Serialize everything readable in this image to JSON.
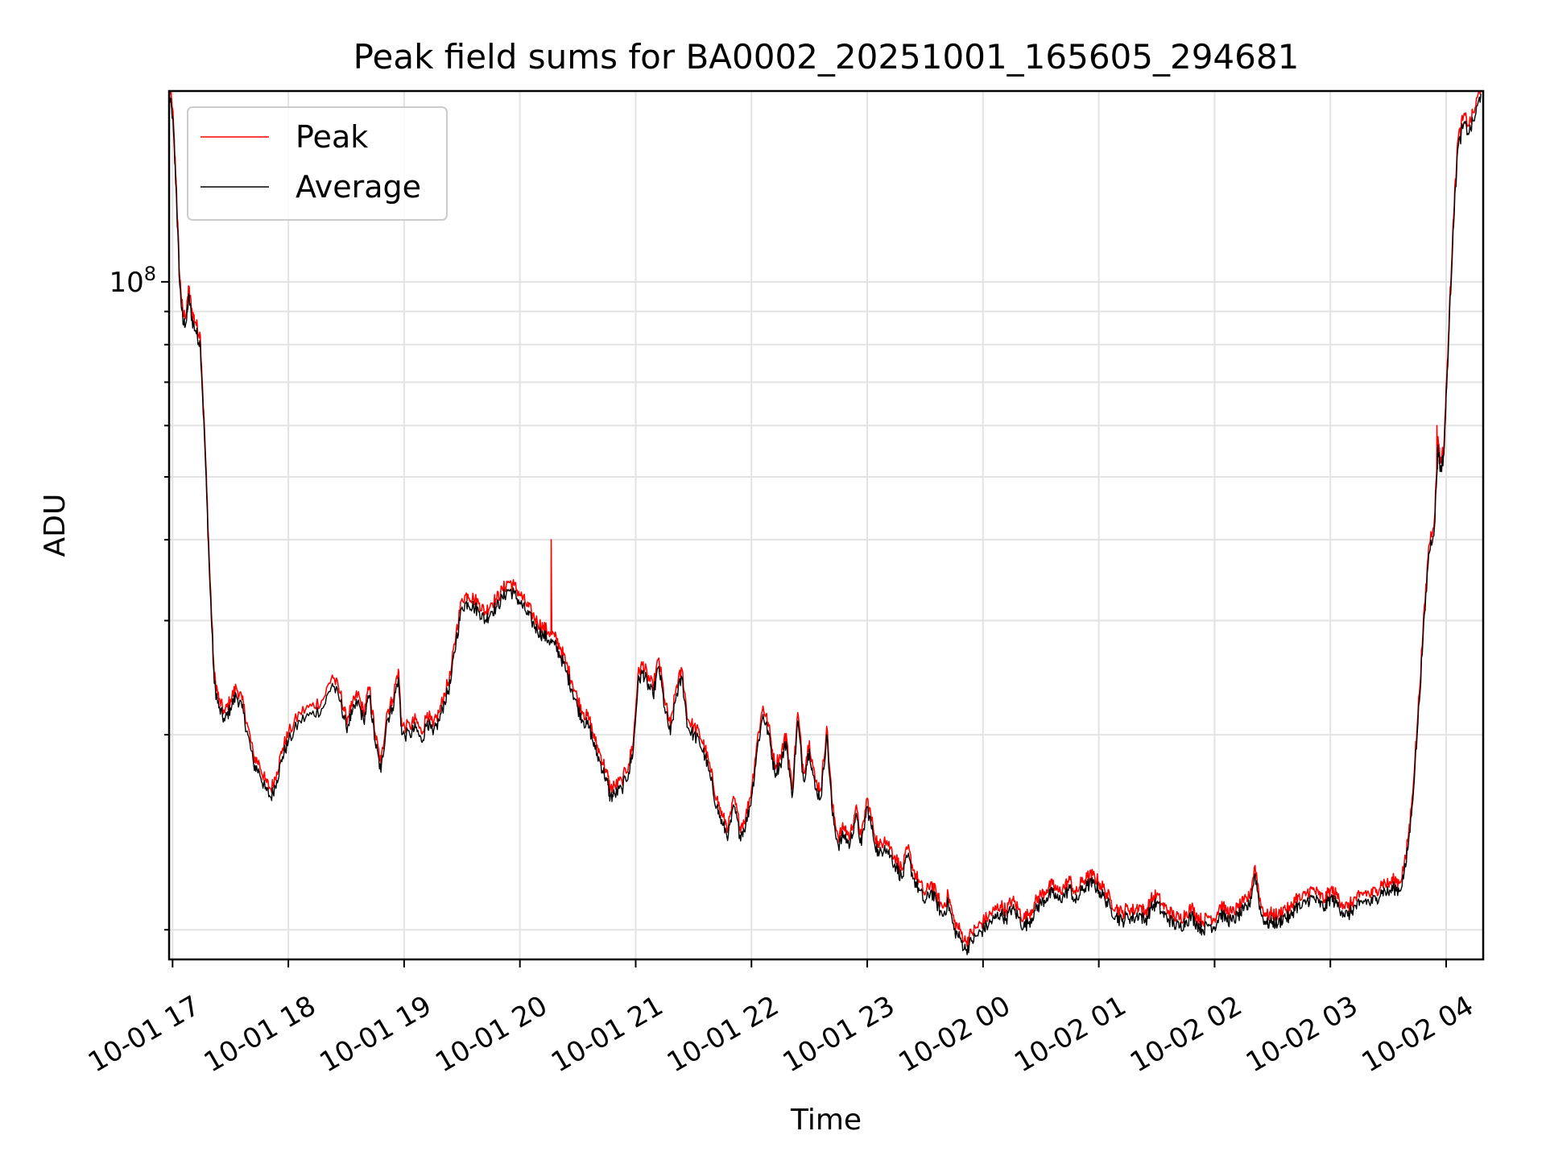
{
  "chart_data": {
    "type": "line",
    "title": "Peak field sums for BA0002_20251001_165605_294681",
    "xlabel": "Time",
    "ylabel": "ADU",
    "yscale": "log",
    "ylim": [
      9000000,
      197000000
    ],
    "xlim_hours": [
      16.97,
      28.32
    ],
    "x_ticks": [
      {
        "hour": 17,
        "label": "10-01 17"
      },
      {
        "hour": 18,
        "label": "10-01 18"
      },
      {
        "hour": 19,
        "label": "10-01 19"
      },
      {
        "hour": 20,
        "label": "10-01 20"
      },
      {
        "hour": 21,
        "label": "10-01 21"
      },
      {
        "hour": 22,
        "label": "10-01 22"
      },
      {
        "hour": 23,
        "label": "10-01 23"
      },
      {
        "hour": 24,
        "label": "10-02 00"
      },
      {
        "hour": 25,
        "label": "10-02 01"
      },
      {
        "hour": 26,
        "label": "10-02 02"
      },
      {
        "hour": 27,
        "label": "10-02 03"
      },
      {
        "hour": 28,
        "label": "10-02 04"
      }
    ],
    "y_major_ticks": [
      {
        "value": 100000000,
        "base": "10",
        "exp": "8"
      }
    ],
    "y_minor_ticks": [
      10000000,
      20000000,
      30000000,
      40000000,
      50000000,
      60000000,
      70000000,
      80000000,
      90000000
    ],
    "grid": true,
    "legend_position": "upper-left",
    "series": [
      {
        "name": "Peak",
        "color": "#ff0000",
        "offset_factor": 1.03
      },
      {
        "name": "Average",
        "color": "#000000",
        "offset_factor": 1.0
      }
    ],
    "average_points": [
      [
        16.97,
        195000000
      ],
      [
        17.0,
        180000000
      ],
      [
        17.03,
        140000000
      ],
      [
        17.06,
        100000000
      ],
      [
        17.09,
        86000000
      ],
      [
        17.12,
        87000000
      ],
      [
        17.14,
        95000000
      ],
      [
        17.17,
        87000000
      ],
      [
        17.2,
        84000000
      ],
      [
        17.24,
        80000000
      ],
      [
        17.28,
        55000000
      ],
      [
        17.32,
        35000000
      ],
      [
        17.36,
        24000000
      ],
      [
        17.4,
        22000000
      ],
      [
        17.45,
        21000000
      ],
      [
        17.5,
        22000000
      ],
      [
        17.55,
        23000000
      ],
      [
        17.6,
        22000000
      ],
      [
        17.65,
        20000000
      ],
      [
        17.7,
        18000000
      ],
      [
        17.75,
        17500000
      ],
      [
        17.8,
        16500000
      ],
      [
        17.85,
        16000000
      ],
      [
        17.9,
        17000000
      ],
      [
        17.95,
        18500000
      ],
      [
        18.0,
        19500000
      ],
      [
        18.1,
        21000000
      ],
      [
        18.2,
        21500000
      ],
      [
        18.3,
        22000000
      ],
      [
        18.38,
        24000000
      ],
      [
        18.45,
        22500000
      ],
      [
        18.5,
        20500000
      ],
      [
        18.55,
        21500000
      ],
      [
        18.6,
        22500000
      ],
      [
        18.65,
        21000000
      ],
      [
        18.7,
        23000000
      ],
      [
        18.75,
        19500000
      ],
      [
        18.8,
        17500000
      ],
      [
        18.85,
        21000000
      ],
      [
        18.9,
        22000000
      ],
      [
        18.95,
        24500000
      ],
      [
        18.98,
        20000000
      ],
      [
        19.05,
        20000000
      ],
      [
        19.1,
        20500000
      ],
      [
        19.15,
        19500000
      ],
      [
        19.2,
        21000000
      ],
      [
        19.25,
        20000000
      ],
      [
        19.3,
        21000000
      ],
      [
        19.35,
        22500000
      ],
      [
        19.4,
        24000000
      ],
      [
        19.45,
        28000000
      ],
      [
        19.5,
        31500000
      ],
      [
        19.55,
        32000000
      ],
      [
        19.6,
        31500000
      ],
      [
        19.65,
        31000000
      ],
      [
        19.7,
        30000000
      ],
      [
        19.75,
        31000000
      ],
      [
        19.8,
        31500000
      ],
      [
        19.85,
        32500000
      ],
      [
        19.9,
        33500000
      ],
      [
        19.95,
        33000000
      ],
      [
        20.0,
        32000000
      ],
      [
        20.05,
        31000000
      ],
      [
        20.1,
        30000000
      ],
      [
        20.15,
        29000000
      ],
      [
        20.2,
        28500000
      ],
      [
        20.25,
        28000000
      ],
      [
        20.3,
        27500000
      ],
      [
        20.35,
        26500000
      ],
      [
        20.4,
        25000000
      ],
      [
        20.45,
        23500000
      ],
      [
        20.5,
        22000000
      ],
      [
        20.55,
        21000000
      ],
      [
        20.6,
        20500000
      ],
      [
        20.65,
        19000000
      ],
      [
        20.7,
        18000000
      ],
      [
        20.75,
        17000000
      ],
      [
        20.78,
        16000000
      ],
      [
        20.82,
        16200000
      ],
      [
        20.88,
        16500000
      ],
      [
        20.94,
        17500000
      ],
      [
        20.98,
        19000000
      ],
      [
        21.02,
        24000000
      ],
      [
        21.06,
        25000000
      ],
      [
        21.1,
        24000000
      ],
      [
        21.15,
        23000000
      ],
      [
        21.2,
        25500000
      ],
      [
        21.25,
        22000000
      ],
      [
        21.3,
        20000000
      ],
      [
        21.35,
        23000000
      ],
      [
        21.4,
        24500000
      ],
      [
        21.45,
        20500000
      ],
      [
        21.5,
        20000000
      ],
      [
        21.55,
        19500000
      ],
      [
        21.6,
        18500000
      ],
      [
        21.65,
        17000000
      ],
      [
        21.7,
        15500000
      ],
      [
        21.75,
        14500000
      ],
      [
        21.8,
        14000000
      ],
      [
        21.85,
        15500000
      ],
      [
        21.9,
        14000000
      ],
      [
        21.95,
        14500000
      ],
      [
        22.0,
        16000000
      ],
      [
        22.05,
        19000000
      ],
      [
        22.1,
        21500000
      ],
      [
        22.15,
        20000000
      ],
      [
        22.2,
        17500000
      ],
      [
        22.25,
        18000000
      ],
      [
        22.3,
        19500000
      ],
      [
        22.35,
        16000000
      ],
      [
        22.4,
        21000000
      ],
      [
        22.45,
        17000000
      ],
      [
        22.5,
        19000000
      ],
      [
        22.55,
        16500000
      ],
      [
        22.6,
        16000000
      ],
      [
        22.65,
        20000000
      ],
      [
        22.7,
        15000000
      ],
      [
        22.75,
        13500000
      ],
      [
        22.8,
        14000000
      ],
      [
        22.85,
        13500000
      ],
      [
        22.9,
        15000000
      ],
      [
        22.95,
        13500000
      ],
      [
        23.0,
        15500000
      ],
      [
        23.05,
        14000000
      ],
      [
        23.1,
        13000000
      ],
      [
        23.15,
        13500000
      ],
      [
        23.2,
        13000000
      ],
      [
        23.25,
        12500000
      ],
      [
        23.3,
        12000000
      ],
      [
        23.35,
        13000000
      ],
      [
        23.4,
        12000000
      ],
      [
        23.45,
        11500000
      ],
      [
        23.5,
        11000000
      ],
      [
        23.55,
        11500000
      ],
      [
        23.6,
        11000000
      ],
      [
        23.65,
        10500000
      ],
      [
        23.7,
        11000000
      ],
      [
        23.75,
        10000000
      ],
      [
        23.8,
        9700000
      ],
      [
        23.85,
        9300000
      ],
      [
        23.9,
        9600000
      ],
      [
        23.95,
        9800000
      ],
      [
        24.0,
        10000000
      ],
      [
        24.05,
        10200000
      ],
      [
        24.1,
        10400000
      ],
      [
        24.15,
        10600000
      ],
      [
        24.2,
        10400000
      ],
      [
        24.25,
        10800000
      ],
      [
        24.3,
        10500000
      ],
      [
        24.35,
        10100000
      ],
      [
        24.4,
        10300000
      ],
      [
        24.45,
        10700000
      ],
      [
        24.5,
        11000000
      ],
      [
        24.55,
        11200000
      ],
      [
        24.6,
        11400000
      ],
      [
        24.65,
        11100000
      ],
      [
        24.7,
        11300000
      ],
      [
        24.75,
        11600000
      ],
      [
        24.8,
        11000000
      ],
      [
        24.85,
        11500000
      ],
      [
        24.9,
        11700000
      ],
      [
        24.95,
        11800000
      ],
      [
        25.0,
        11500000
      ],
      [
        25.05,
        11200000
      ],
      [
        25.1,
        10800000
      ],
      [
        25.15,
        10500000
      ],
      [
        25.2,
        10300000
      ],
      [
        25.25,
        10500000
      ],
      [
        25.3,
        10400000
      ],
      [
        25.35,
        10600000
      ],
      [
        25.4,
        10300000
      ],
      [
        25.45,
        10800000
      ],
      [
        25.5,
        11000000
      ],
      [
        25.55,
        10600000
      ],
      [
        25.6,
        10400000
      ],
      [
        25.65,
        10200000
      ],
      [
        25.7,
        10100000
      ],
      [
        25.75,
        10300000
      ],
      [
        25.8,
        10500000
      ],
      [
        25.85,
        10200000
      ],
      [
        25.9,
        10000000
      ],
      [
        25.95,
        10200000
      ],
      [
        26.0,
        10100000
      ],
      [
        26.05,
        10600000
      ],
      [
        26.1,
        10400000
      ],
      [
        26.15,
        10300000
      ],
      [
        26.2,
        10500000
      ],
      [
        26.25,
        10700000
      ],
      [
        26.3,
        10900000
      ],
      [
        26.35,
        12200000
      ],
      [
        26.4,
        10600000
      ],
      [
        26.45,
        10200000
      ],
      [
        26.5,
        10300000
      ],
      [
        26.55,
        10200000
      ],
      [
        26.6,
        10500000
      ],
      [
        26.65,
        10400000
      ],
      [
        26.7,
        10900000
      ],
      [
        26.75,
        10800000
      ],
      [
        26.8,
        11100000
      ],
      [
        26.85,
        11200000
      ],
      [
        26.9,
        11000000
      ],
      [
        26.95,
        10800000
      ],
      [
        27.0,
        11200000
      ],
      [
        27.05,
        11000000
      ],
      [
        27.1,
        10700000
      ],
      [
        27.15,
        10500000
      ],
      [
        27.2,
        10800000
      ],
      [
        27.25,
        10900000
      ],
      [
        27.3,
        11100000
      ],
      [
        27.35,
        11000000
      ],
      [
        27.4,
        11200000
      ],
      [
        27.45,
        11500000
      ],
      [
        27.5,
        11400000
      ],
      [
        27.55,
        11600000
      ],
      [
        27.6,
        11500000
      ],
      [
        27.65,
        12500000
      ],
      [
        27.7,
        15000000
      ],
      [
        27.75,
        20000000
      ],
      [
        27.8,
        28000000
      ],
      [
        27.85,
        38000000
      ],
      [
        27.9,
        42000000
      ],
      [
        27.93,
        56000000
      ],
      [
        27.95,
        51000000
      ],
      [
        27.98,
        54000000
      ],
      [
        28.02,
        80000000
      ],
      [
        28.06,
        120000000
      ],
      [
        28.1,
        160000000
      ],
      [
        28.15,
        175000000
      ],
      [
        28.2,
        170000000
      ],
      [
        28.25,
        180000000
      ],
      [
        28.3,
        195000000
      ]
    ],
    "peak_spikes": [
      [
        20.27,
        40000000
      ],
      [
        27.92,
        60000000
      ]
    ]
  },
  "legend": {
    "peak_label": "Peak",
    "average_label": "Average"
  }
}
